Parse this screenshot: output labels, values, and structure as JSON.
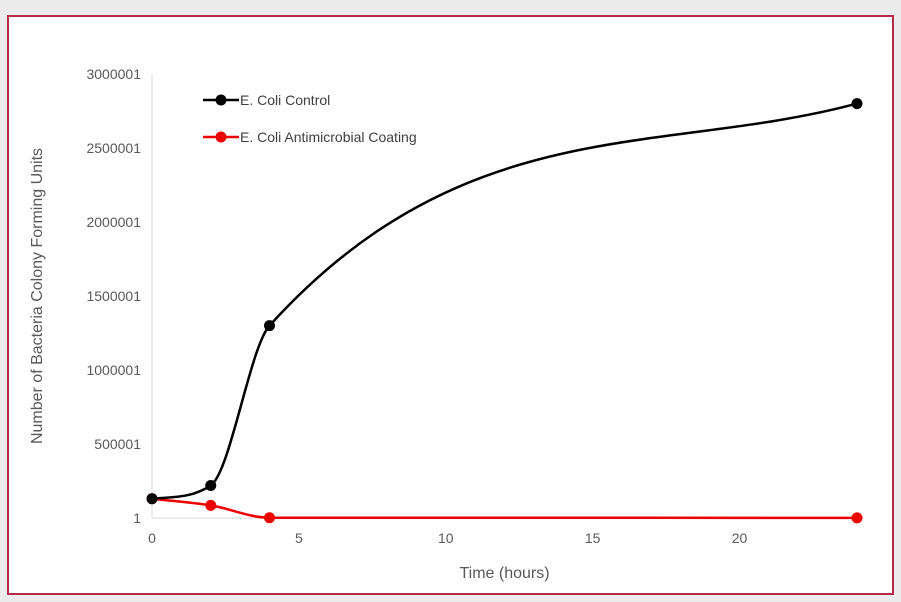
{
  "chart_data": {
    "type": "line",
    "smooth": true,
    "title": "",
    "xlabel": "Time (hours)",
    "ylabel": "Number of Bacteria Colony Forming Units",
    "xlim": [
      0,
      24
    ],
    "ylim": [
      1,
      3000001
    ],
    "xticks": [
      0,
      5,
      10,
      15,
      20
    ],
    "yticks": [
      1,
      500001,
      1000001,
      1500001,
      2000001,
      2500001,
      3000001
    ],
    "grid": false,
    "legend": "top-left",
    "series": [
      {
        "name": "E. Coli Control",
        "color": "#000000",
        "x": [
          0,
          2,
          4,
          24
        ],
        "y": [
          130000,
          220000,
          1300000,
          2800000
        ]
      },
      {
        "name": "E. Coli Antimicrobial Coating",
        "color": "#ee0000",
        "x": [
          0,
          2,
          4,
          24
        ],
        "y": [
          130000,
          85000,
          2000,
          1000
        ]
      }
    ]
  }
}
